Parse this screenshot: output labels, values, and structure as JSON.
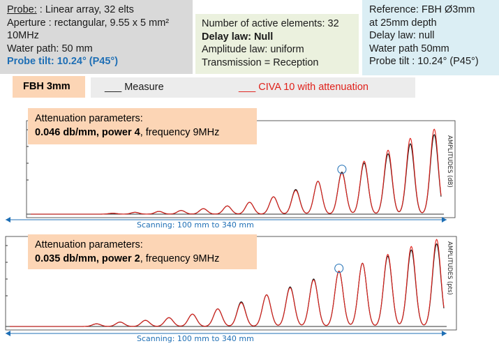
{
  "probe": {
    "label": "Probe:",
    "value": ": Linear array, 32 elts",
    "aperture": "Aperture : rectangular, 9.55 x 5 mm²",
    "frequency": "10MHz",
    "water_path": "Water path: 50 mm",
    "tilt": "Probe tilt: 10.24° (P45°)"
  },
  "law": {
    "active": "Number of active elements: 32",
    "delay": "Delay law: Null",
    "amplitude": "Amplitude law: uniform",
    "transmission": "Transmission = Reception"
  },
  "reference": {
    "line1": "Reference: FBH Ø3mm",
    "line2": "at 25mm  depth",
    "line3": "Delay law: null",
    "line4": "Water path 50mm",
    "line5": "Probe tilt : 10.24° (P45°)"
  },
  "fbh_label": "FBH 3mm",
  "legend": {
    "measure": "___ Measure",
    "civa": "___ CIVA 10 with attenuation"
  },
  "colors": {
    "measure": "#1a1a1a",
    "civa": "#e0201a",
    "scan": "#1f6fb5",
    "note_bg": "#fcd5b5"
  },
  "chart_data": [
    {
      "type": "line",
      "attenuation_title": "Attenuation parameters:",
      "attenuation_bold": "0.046 db/mm,  power 4",
      "attenuation_rest": ", frequency 9MHz",
      "ylabel": "AMPLITUDES (dB)",
      "xlabel": "Scanning: 100 mm  to 340 mm",
      "xlim": [
        100,
        340
      ],
      "ylim": [
        0,
        1
      ],
      "series": [
        {
          "name": "Measure",
          "peaks_x": [
            148,
            161,
            175,
            188,
            201,
            215,
            228,
            242,
            255,
            268,
            282,
            295,
            309,
            322,
            336
          ],
          "peaks_y": [
            0.01,
            0.02,
            0.03,
            0.04,
            0.06,
            0.09,
            0.13,
            0.19,
            0.27,
            0.36,
            0.46,
            0.56,
            0.66,
            0.77,
            0.87
          ]
        },
        {
          "name": "CIVA 10 with attenuation",
          "peaks_x": [
            148,
            161,
            175,
            188,
            201,
            215,
            228,
            242,
            255,
            268,
            282,
            295,
            309,
            322,
            336
          ],
          "peaks_y": [
            0.01,
            0.02,
            0.03,
            0.04,
            0.06,
            0.09,
            0.13,
            0.19,
            0.26,
            0.36,
            0.45,
            0.58,
            0.7,
            0.83,
            0.93
          ]
        }
      ]
    },
    {
      "type": "line",
      "attenuation_title": "Attenuation parameters:",
      "attenuation_bold": "0.035 db/mm,  power 2",
      "attenuation_rest": ", frequency 9MHz",
      "ylabel": "AMPLITUDES (pts)",
      "xlabel": "Scanning: 100 mm  to 340 mm",
      "xlim": [
        100,
        340
      ],
      "ylim": [
        0,
        1
      ],
      "series": [
        {
          "name": "Measure",
          "peaks_x": [
            148,
            161,
            175,
            188,
            201,
            215,
            228,
            242,
            255,
            268,
            282,
            295,
            309,
            322,
            336
          ],
          "peaks_y": [
            0.03,
            0.05,
            0.07,
            0.1,
            0.14,
            0.2,
            0.28,
            0.36,
            0.45,
            0.54,
            0.63,
            0.72,
            0.8,
            0.87,
            0.94
          ]
        },
        {
          "name": "CIVA 10 with attenuation",
          "peaks_x": [
            148,
            161,
            175,
            188,
            201,
            215,
            228,
            242,
            255,
            268,
            282,
            295,
            309,
            322,
            336
          ],
          "peaks_y": [
            0.03,
            0.05,
            0.07,
            0.1,
            0.14,
            0.2,
            0.27,
            0.36,
            0.44,
            0.53,
            0.63,
            0.72,
            0.82,
            0.91,
            0.99
          ]
        }
      ]
    }
  ]
}
